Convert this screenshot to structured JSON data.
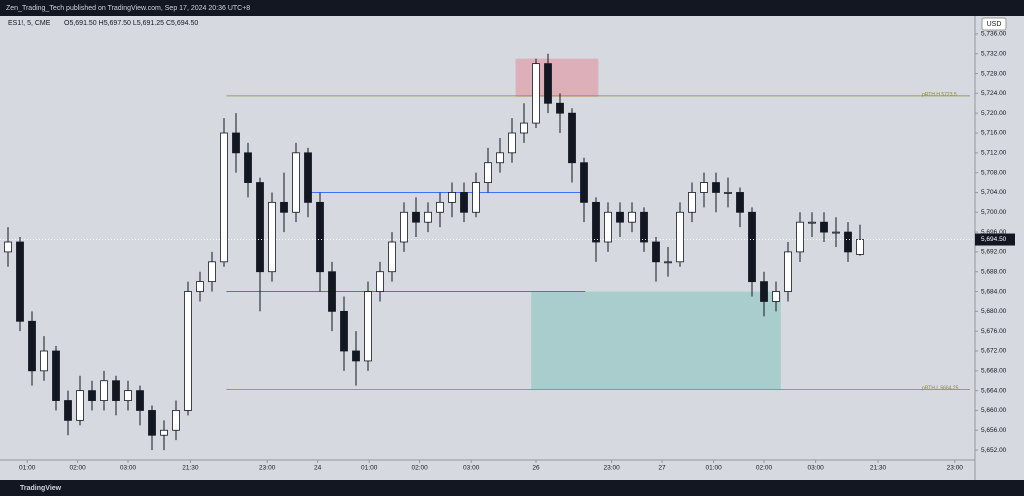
{
  "header": {
    "publisher": "Zen_Trading_Tech published on TradingView.com, Sep 17, 2024 20:36 UTC+8",
    "symbol": "ES1!, 5, CME",
    "ohlc": "O5,691.50 H5,697.50 L5,691.25 C5,694.50",
    "currency": "USD"
  },
  "footer": {
    "brand": "TradingView"
  },
  "chart_data": {
    "type": "candlestick",
    "up_color": "#ffffff",
    "down_color": "#131722",
    "wick_color": "#131722",
    "open": [
      5692,
      5694,
      5678,
      5668,
      5672,
      5662,
      5658,
      5664,
      5662,
      5666,
      5662,
      5664,
      5660,
      5655,
      5656,
      5660,
      5684,
      5686,
      5690,
      5716,
      5712,
      5706,
      5688,
      5702,
      5700,
      5712,
      5702,
      5688,
      5680,
      5672,
      5670,
      5684,
      5688,
      5694,
      5700,
      5698,
      5700,
      5702,
      5704,
      5700,
      5706,
      5710,
      5712,
      5716,
      5718,
      5730,
      5722,
      5720,
      5710,
      5702,
      5694,
      5700,
      5698,
      5700,
      5694,
      5690,
      5690,
      5700,
      5704,
      5706,
      5704,
      5704,
      5700,
      5686,
      5682,
      5684,
      5692,
      5698,
      5698,
      5696,
      5696,
      5691.5
    ],
    "high": [
      5697,
      5695,
      5680,
      5675,
      5673,
      5664,
      5667,
      5666,
      5668,
      5667,
      5666,
      5665,
      5661,
      5658,
      5662,
      5686,
      5688,
      5692,
      5719,
      5720,
      5714,
      5707,
      5704,
      5708,
      5714,
      5713,
      5704,
      5690,
      5683,
      5676,
      5686,
      5690,
      5696,
      5702,
      5703,
      5702,
      5704,
      5706,
      5706,
      5708,
      5713,
      5715,
      5719,
      5722,
      5731,
      5732,
      5724,
      5721,
      5711,
      5703,
      5702,
      5702,
      5702,
      5701,
      5695,
      5693,
      5702,
      5706,
      5708,
      5708,
      5707,
      5705,
      5701,
      5688,
      5686,
      5694,
      5700,
      5700,
      5700,
      5699,
      5698,
      5697.5
    ],
    "low": [
      5689,
      5676,
      5665,
      5666,
      5660,
      5655,
      5657,
      5660,
      5660,
      5659,
      5660,
      5657,
      5652,
      5652,
      5654,
      5659,
      5682,
      5684,
      5689,
      5708,
      5703,
      5680,
      5686,
      5696,
      5698,
      5699,
      5684,
      5676,
      5668,
      5665,
      5668,
      5682,
      5686,
      5692,
      5695,
      5696,
      5697,
      5699,
      5698,
      5699,
      5704,
      5708,
      5710,
      5714,
      5717,
      5720,
      5716,
      5706,
      5698,
      5690,
      5692,
      5695,
      5696,
      5692,
      5686,
      5687,
      5689,
      5698,
      5701,
      5700,
      5701,
      5697,
      5683,
      5679,
      5680,
      5682,
      5690,
      5695,
      5694,
      5693,
      5690,
      5691.25
    ],
    "close": [
      5694,
      5678,
      5668,
      5672,
      5662,
      5658,
      5664,
      5662,
      5666,
      5662,
      5664,
      5660,
      5655,
      5656,
      5660,
      5684,
      5686,
      5690,
      5716,
      5712,
      5706,
      5688,
      5702,
      5700,
      5712,
      5702,
      5688,
      5680,
      5672,
      5670,
      5684,
      5688,
      5694,
      5700,
      5698,
      5700,
      5702,
      5704,
      5700,
      5706,
      5710,
      5712,
      5716,
      5718,
      5730,
      5722,
      5720,
      5710,
      5702,
      5694,
      5700,
      5698,
      5700,
      5694,
      5690,
      5690,
      5700,
      5704,
      5706,
      5704,
      5704,
      5700,
      5686,
      5682,
      5684,
      5692,
      5698,
      5698,
      5696,
      5696,
      5692,
      5694.5
    ],
    "last_price": {
      "value": 5694.5,
      "label": "5,694.50"
    },
    "ylim": [
      5650,
      5738
    ],
    "yticks": [
      {
        "value": 5652,
        "label": "5,652.00"
      },
      {
        "value": 5656,
        "label": "5,656.00"
      },
      {
        "value": 5660,
        "label": "5,660.00"
      },
      {
        "value": 5664,
        "label": "5,664.00"
      },
      {
        "value": 5668,
        "label": "5,668.00"
      },
      {
        "value": 5672,
        "label": "5,672.00"
      },
      {
        "value": 5676,
        "label": "5,676.00"
      },
      {
        "value": 5680,
        "label": "5,680.00"
      },
      {
        "value": 5684,
        "label": "5,684.00"
      },
      {
        "value": 5688,
        "label": "5,688.00"
      },
      {
        "value": 5692,
        "label": "5,692.00"
      },
      {
        "value": 5696,
        "label": "5,696.00"
      },
      {
        "value": 5700,
        "label": "5,700.00"
      },
      {
        "value": 5704,
        "label": "5,704.00"
      },
      {
        "value": 5708,
        "label": "5,708.00"
      },
      {
        "value": 5712,
        "label": "5,712.00"
      },
      {
        "value": 5716,
        "label": "5,716.00"
      },
      {
        "value": 5720,
        "label": "5,720.00"
      },
      {
        "value": 5724,
        "label": "5,724.00"
      },
      {
        "value": 5728,
        "label": "5,728.00"
      },
      {
        "value": 5732,
        "label": "5,732.00"
      },
      {
        "value": 5736,
        "label": "5,736.00"
      }
    ],
    "xticks": [
      {
        "value": 1.6,
        "label": "01:00"
      },
      {
        "value": 5.8,
        "label": "02:00"
      },
      {
        "value": 10,
        "label": "03:00"
      },
      {
        "value": 15.2,
        "label": "21:30"
      },
      {
        "value": 21.6,
        "label": "23:00"
      },
      {
        "value": 25.8,
        "label": "24"
      },
      {
        "value": 30.1,
        "label": "01:00"
      },
      {
        "value": 34.3,
        "label": "02:00"
      },
      {
        "value": 38.6,
        "label": "03:00"
      },
      {
        "value": 44,
        "label": "26"
      },
      {
        "value": 50.3,
        "label": "23:00"
      },
      {
        "value": 54.5,
        "label": "27"
      },
      {
        "value": 58.8,
        "label": "01:00"
      },
      {
        "value": 63,
        "label": "02:00"
      },
      {
        "value": 67.3,
        "label": "03:00"
      },
      {
        "value": 72.5,
        "label": "21:30"
      },
      {
        "value": 78.9,
        "label": "23:00"
      }
    ],
    "levels": [
      {
        "value": 5723.5,
        "label": "pRTH.H 5723.5",
        "color": "#8a8a1f",
        "start": 18.2
      },
      {
        "value": 5664.25,
        "label": "pRTH.L 5664.25",
        "color": "#8a8a1f",
        "start": 18.2
      },
      {
        "value": 5704,
        "color": "#2962ff",
        "start": 24.7
      },
      {
        "value": 5684,
        "color": "#2962ff",
        "start": 18.2
      }
    ],
    "zones": [
      {
        "top": 5731,
        "bottom": 5723.3,
        "start": 42.3,
        "end": 49.2,
        "color": "rgba(242,54,69,0.25)"
      },
      {
        "top": 5684,
        "bottom": 5664.2,
        "start": 43.6,
        "end": 64.4,
        "color": "rgba(34,171,148,0.25)"
      }
    ]
  }
}
